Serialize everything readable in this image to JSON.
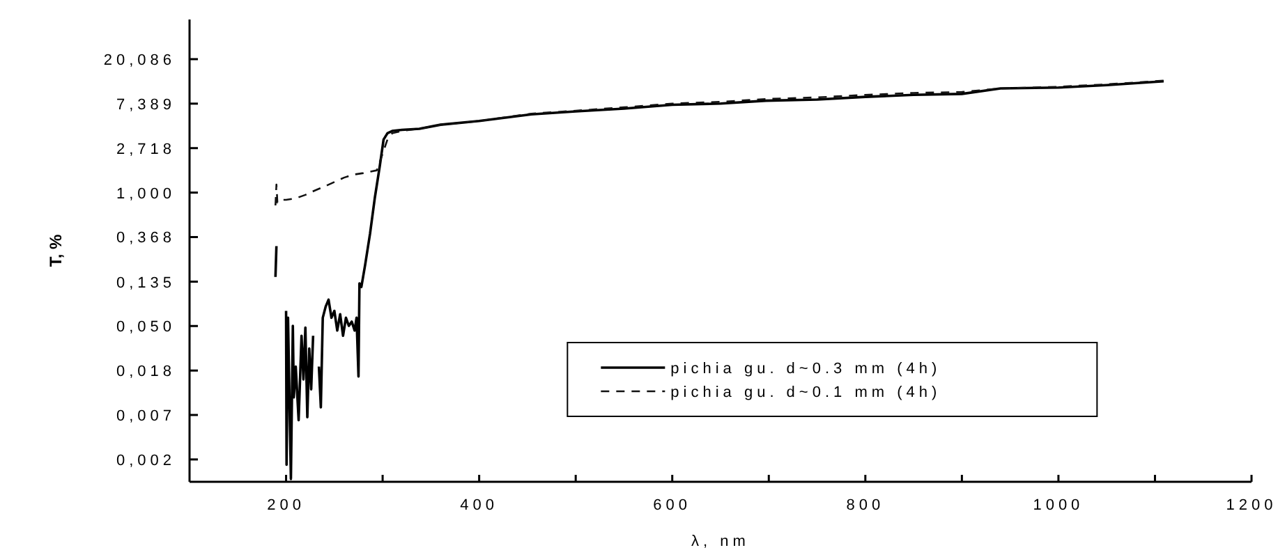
{
  "chart_data": {
    "type": "line",
    "xlabel": "λ, nm",
    "ylabel": "T, %",
    "log": "y",
    "xlim": [
      100,
      1200
    ],
    "ylim": [
      0.0015,
      49
    ],
    "xticks": [
      200,
      {
        "value": 300,
        "label": null
      },
      400,
      {
        "value": 500,
        "label": null
      },
      600,
      {
        "value": 700,
        "label": null
      },
      800,
      {
        "value": 900,
        "label": null
      },
      1000,
      {
        "value": 1100,
        "label": null
      },
      1200
    ],
    "yticks": [
      {
        "value": 0.00248,
        "label": "0,002"
      },
      {
        "value": 0.00674,
        "label": "0,007"
      },
      {
        "value": 0.0183,
        "label": "0,018"
      },
      {
        "value": 0.0498,
        "label": "0,050"
      },
      {
        "value": 0.135,
        "label": "0,135"
      },
      {
        "value": 0.368,
        "label": "0,368"
      },
      {
        "value": 1,
        "label": "1,000"
      },
      {
        "value": 2.718,
        "label": "2,718"
      },
      {
        "value": 7.389,
        "label": "7,389"
      },
      {
        "value": 20.086,
        "label": "20,086"
      }
    ],
    "grid": false,
    "legend": "bottom right",
    "marker": "none",
    "series": [
      {
        "name": "pichia gu. d~0.3 mm (4h)",
        "color": "#000000",
        "line_style": "solid",
        "x": [
          189,
          190,
          191,
          200,
          200.5,
          202,
          205,
          207,
          208,
          210,
          213,
          216,
          218,
          220,
          222,
          224,
          226,
          228,
          229,
          230,
          232,
          234,
          236,
          238,
          241,
          244,
          247,
          250,
          253,
          256,
          259,
          262,
          265,
          268,
          271,
          273,
          275,
          276,
          278,
          282,
          287,
          292,
          297,
          301,
          305,
          310,
          320,
          338,
          360,
          400,
          454,
          500,
          550,
          600,
          650,
          697,
          750,
          800,
          850,
          900,
          940,
          1000,
          1050,
          1109
        ],
        "values": [
          0.15,
          0.3,
          null,
          0.07,
          0.0022,
          0.06,
          0.0016,
          0.05,
          0.01,
          0.02,
          0.006,
          0.04,
          0.015,
          0.048,
          0.0064,
          0.03,
          0.012,
          0.04,
          null,
          0.035,
          null,
          0.02,
          0.008,
          0.06,
          0.077,
          0.09,
          0.06,
          0.07,
          0.045,
          0.065,
          0.04,
          0.06,
          0.05,
          0.055,
          0.045,
          0.06,
          0.016,
          0.13,
          0.12,
          0.2,
          0.4,
          0.9,
          1.8,
          3.3,
          3.8,
          4.0,
          4.1,
          4.2,
          4.6,
          5.0,
          5.8,
          6.2,
          6.6,
          7.2,
          7.4,
          7.9,
          8.1,
          8.6,
          9.0,
          9.2,
          10.4,
          10.6,
          11.2,
          12.2
        ]
      },
      {
        "name": "pichia gu. d~0.1 mm (4h)",
        "color": "#111111",
        "line_style": "dashed",
        "x": [
          189,
          190,
          191,
          195,
          200,
          210,
          220,
          230,
          240,
          251,
          260,
          270,
          280,
          294,
          300,
          305,
          310,
          320,
          338,
          360,
          400,
          454,
          500,
          550,
          600,
          650,
          697,
          750,
          800,
          850,
          900,
          940,
          1000,
          1050,
          1109
        ],
        "values": [
          0.75,
          1.2,
          0.8,
          0.85,
          0.85,
          0.88,
          0.95,
          1.05,
          1.15,
          1.28,
          1.4,
          1.5,
          1.55,
          1.65,
          2.4,
          3.3,
          3.8,
          4.0,
          4.2,
          4.6,
          5.0,
          5.9,
          6.3,
          6.8,
          7.4,
          7.7,
          8.2,
          8.5,
          9.0,
          9.4,
          9.6,
          10.4,
          10.8,
          11.4,
          12.4
        ]
      }
    ]
  }
}
